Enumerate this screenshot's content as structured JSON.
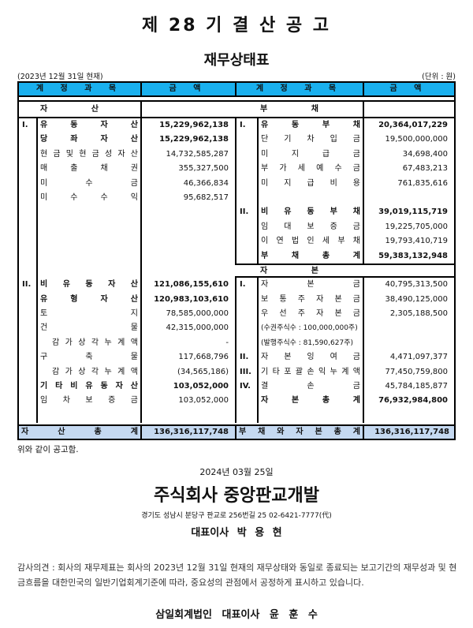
{
  "title": "제 28 기 결 산 공 고",
  "subtitle": "재무상태표",
  "as_of": "(2023년 12월 31일 현재)",
  "unit": "(단위 : 원)",
  "header": {
    "account": "계 정 과 목",
    "amount": "금 액"
  },
  "header_color": "#1ab0ee",
  "total_row_color": "#c5d9f1",
  "left": {
    "section": "자 산",
    "rows": [
      {
        "roman": "I.",
        "label": "유 동 자 산",
        "amount": "15,229,962,138",
        "bold": true
      },
      {
        "roman": "",
        "label": "당 좌 자 산",
        "amount": "15,229,962,138",
        "bold": true
      },
      {
        "roman": "",
        "label": "현 금 및 현 금 성 자 산",
        "amount": "14,732,585,287"
      },
      {
        "roman": "",
        "label": "매 출 채 권",
        "amount": "355,327,500"
      },
      {
        "roman": "",
        "label": "미 수 금",
        "amount": "46,366,834"
      },
      {
        "roman": "",
        "label": "미 수 수 익",
        "amount": "95,682,517"
      },
      {},
      {},
      {},
      {},
      {},
      {
        "roman": "II.",
        "label": "비 유 동 자 산",
        "amount": "121,086,155,610",
        "bold": true
      },
      {
        "roman": "",
        "label": "유 형 자 산",
        "amount": "120,983,103,610",
        "bold": true
      },
      {
        "roman": "",
        "label": "토 지",
        "amount": "78,585,000,000"
      },
      {
        "roman": "",
        "label": "건 물",
        "amount": "42,315,000,000"
      },
      {
        "roman": "",
        "label": "감 가 상 각 누 계 액",
        "amount": "-",
        "sub": true
      },
      {
        "roman": "",
        "label": "구 축 물",
        "amount": "117,668,796"
      },
      {
        "roman": "",
        "label": "감 가 상 각 누 계 액",
        "amount": "(34,565,186)",
        "sub": true
      },
      {
        "roman": "",
        "label": "기 타 비 유 동 자 산",
        "amount": "103,052,000",
        "bold": true
      },
      {
        "roman": "",
        "label": "임 차 보 증 금",
        "amount": "103,052,000"
      },
      {}
    ],
    "total": {
      "label": "자 산 총 계",
      "amount": "136,316,117,748"
    }
  },
  "right": {
    "section": "부 채",
    "rows": [
      {
        "roman": "I.",
        "label": "유 동 부 채",
        "amount": "20,364,017,229",
        "bold": true
      },
      {
        "roman": "",
        "label": "단 기 차 입 금",
        "amount": "19,500,000,000"
      },
      {
        "roman": "",
        "label": "미 지 급 금",
        "amount": "34,698,400"
      },
      {
        "roman": "",
        "label": "부 가 세 예 수 금",
        "amount": "67,483,213"
      },
      {
        "roman": "",
        "label": "미 지 급 비 용",
        "amount": "761,835,616"
      },
      {},
      {
        "roman": "II.",
        "label": "비 유 동 부 채",
        "amount": "39,019,115,719",
        "bold": true
      },
      {
        "roman": "",
        "label": "임 대 보 증 금",
        "amount": "19,225,705,000"
      },
      {
        "roman": "",
        "label": "이 연 법 인 세 부 채",
        "amount": "19,793,410,719"
      },
      {
        "roman": "",
        "label": "부 채 총 계",
        "amount": "59,383,132,948",
        "bold": true
      },
      {
        "section": "자 본"
      },
      {
        "roman": "I.",
        "label": "자 본 금",
        "amount": "40,795,313,500"
      },
      {
        "roman": "",
        "label": "보 통 주 자 본 금",
        "amount": "38,490,125,000"
      },
      {
        "roman": "",
        "label": "우 선 주 자 본 금",
        "amount": "2,305,188,500"
      },
      {
        "roman": "",
        "label": "(수권주식수 : 100,000,000주)",
        "note": true
      },
      {
        "roman": "",
        "label": "(발행주식수 :   81,590,627주)",
        "note": true
      },
      {
        "roman": "II.",
        "label": "자 본 잉 여 금",
        "amount": "4,471,097,377"
      },
      {
        "roman": "III.",
        "label": "기 타 포 괄 손 익 누 계 액",
        "amount": "77,450,759,800"
      },
      {
        "roman": "IV.",
        "label": "결 손 금",
        "amount": "45,784,185,877"
      },
      {
        "roman": "",
        "label": "자 본 총 계",
        "amount": "76,932,984,800",
        "bold": true
      },
      {}
    ],
    "total": {
      "label": "부 채 와 자 본 총 계",
      "amount": "136,316,117,748"
    }
  },
  "notice": "위와 같이 공고함.",
  "date": "2024년 03월 25일",
  "company": "주식회사 중앙판교개발",
  "address": "경기도 성남시 분당구 판교로 256번길 25 02-6421-7777(代)",
  "ceo": "대표이사 박 용 현",
  "audit_opinion": "감사의견 : 회사의 재무제표는 회사의 2023년 12월 31일 현재의 재무상태와 동일로 종료되는 보고기간의 재무성과 및 현금흐름을 대한민국의 일반기업회계기준에 따라, 중요성의 관점에서 공정하게 표시하고 있습니다.",
  "auditor": "삼일회계법인 대표이사 윤 훈 수"
}
